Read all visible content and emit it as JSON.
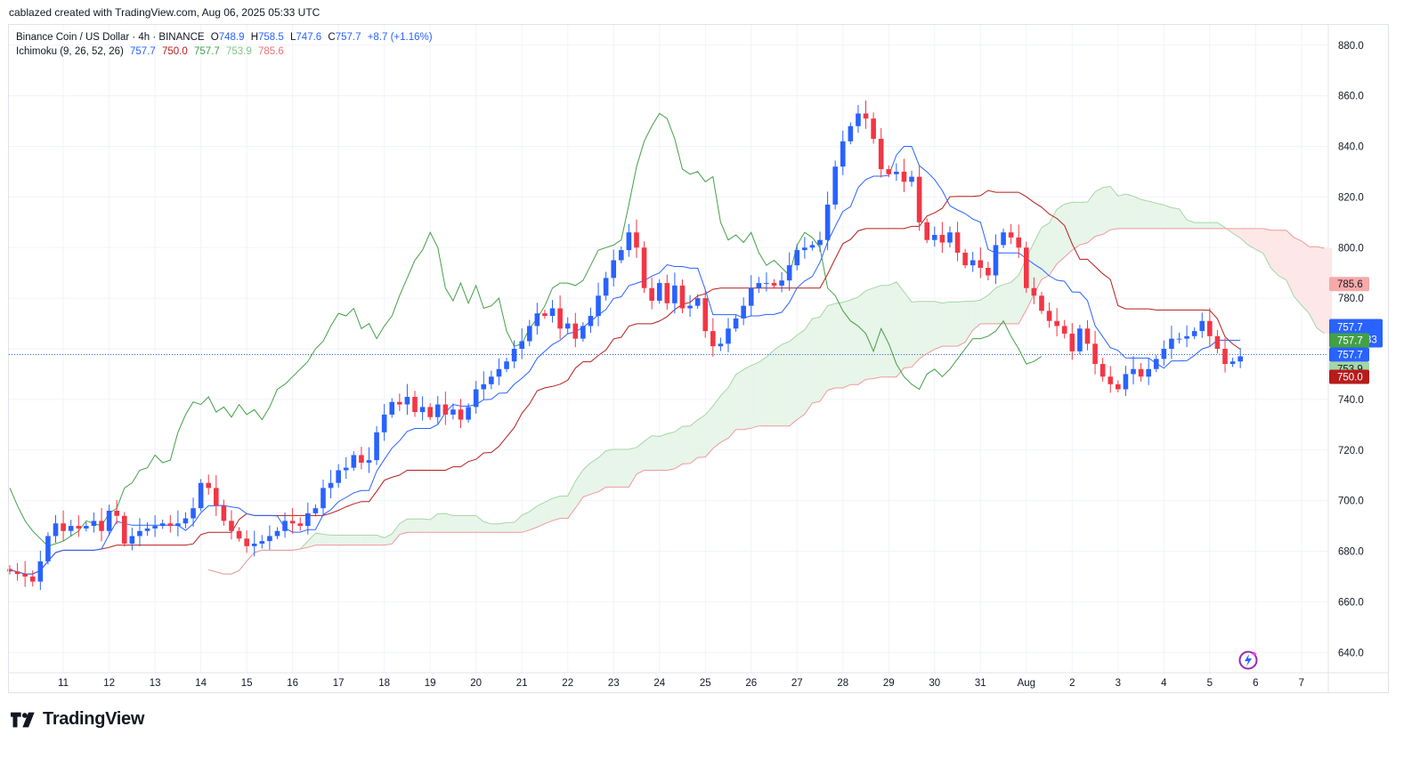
{
  "header": {
    "credit": "cablazed created with TradingView.com, Aug 06, 2025 05:33 UTC"
  },
  "legend": {
    "symbol_title": "Binance Coin / US Dollar · 4h · BINANCE",
    "o_label": "O",
    "o_value": "748.9",
    "h_label": "H",
    "h_value": "758.5",
    "l_label": "L",
    "l_value": "747.6",
    "c_label": "C",
    "c_value": "757.7",
    "change": "+8.7 (+1.16%)",
    "ichimoku_title": "Ichimoku (9, 26, 52, 26)",
    "ichimoku_values": [
      "757.7",
      "750.0",
      "757.7",
      "753.9",
      "785.6"
    ]
  },
  "footer": {
    "brand": "TradingView"
  },
  "colors": {
    "up": "#2962ff",
    "down": "#f23645",
    "conversion": "#2962ff",
    "base": "#b71c1c",
    "lagging": "#43a047",
    "lead_a": "#a5d6a7",
    "lead_b": "#ef9a9a",
    "cloud_bull": "#e8f5e9",
    "cloud_bear": "#fde7e7"
  },
  "chart_data": {
    "type": "candlestick",
    "timeframe": "4h",
    "y_range": [
      632,
      888
    ],
    "y_ticks": [
      640,
      660,
      680,
      700,
      720,
      740,
      760,
      780,
      800,
      820,
      840,
      860,
      880
    ],
    "y_tick_labels": [
      "640.0",
      "660.0",
      "680.0",
      "700.0",
      "720.0",
      "740.0",
      "760.0",
      "780.0",
      "800.0",
      "820.0",
      "840.0",
      "860.0",
      "880.0"
    ],
    "x_ticks": [
      {
        "label": "11",
        "i": 7
      },
      {
        "label": "12",
        "i": 13
      },
      {
        "label": "13",
        "i": 19
      },
      {
        "label": "14",
        "i": 25
      },
      {
        "label": "15",
        "i": 31
      },
      {
        "label": "16",
        "i": 37
      },
      {
        "label": "17",
        "i": 43
      },
      {
        "label": "18",
        "i": 49
      },
      {
        "label": "19",
        "i": 55
      },
      {
        "label": "20",
        "i": 61
      },
      {
        "label": "21",
        "i": 67
      },
      {
        "label": "22",
        "i": 73
      },
      {
        "label": "23",
        "i": 79
      },
      {
        "label": "24",
        "i": 85
      },
      {
        "label": "25",
        "i": 91
      },
      {
        "label": "26",
        "i": 97
      },
      {
        "label": "27",
        "i": 103
      },
      {
        "label": "28",
        "i": 109
      },
      {
        "label": "29",
        "i": 115
      },
      {
        "label": "30",
        "i": 121
      },
      {
        "label": "31",
        "i": 127
      },
      {
        "label": "Aug",
        "i": 133
      },
      {
        "label": "2",
        "i": 139
      },
      {
        "label": "3",
        "i": 145
      },
      {
        "label": "4",
        "i": 151
      },
      {
        "label": "5",
        "i": 157
      },
      {
        "label": "6",
        "i": 163
      },
      {
        "label": "7",
        "i": 169
      }
    ],
    "closes": [
      672,
      671,
      670,
      668,
      676,
      686,
      691,
      688,
      690,
      689,
      690,
      692,
      688,
      696,
      694,
      683,
      686,
      688,
      689,
      690,
      691,
      690,
      691,
      693,
      697,
      707,
      705,
      698,
      692,
      688,
      685,
      682,
      683,
      684,
      686,
      688,
      692,
      691,
      690,
      695,
      697,
      705,
      707,
      712,
      713,
      718,
      715,
      716,
      727,
      734,
      739,
      738,
      741,
      735,
      737,
      733,
      738,
      734,
      736,
      732,
      737,
      744,
      746,
      749,
      752,
      755,
      760,
      763,
      769,
      774,
      773,
      776,
      768,
      770,
      764,
      769,
      773,
      781,
      788,
      795,
      799,
      806,
      800,
      784,
      779,
      786,
      778,
      785,
      776,
      777,
      780,
      767,
      761,
      762,
      768,
      772,
      777,
      784,
      786,
      786,
      785,
      787,
      793,
      799,
      800,
      801,
      803,
      817,
      832,
      842,
      848,
      853,
      851,
      843,
      831,
      829,
      830,
      826,
      828,
      810,
      803,
      805,
      802,
      806,
      798,
      793,
      795,
      792,
      789,
      801,
      806,
      804,
      800,
      784,
      781,
      775,
      771,
      769,
      766,
      759,
      768,
      762,
      754,
      749,
      746,
      744,
      750,
      752,
      749,
      752,
      756,
      760,
      764,
      764,
      765,
      767,
      771,
      765,
      760,
      754,
      755,
      757
    ],
    "current_price": "757.7",
    "countdown": "02:26:33",
    "ichimoku": {
      "conversion_last": 757.7,
      "base_last": 750.0,
      "lagging_last": 757.7,
      "lead_a_last": 753.9,
      "lead_b_last": 785.6
    },
    "price_labels": [
      "785.6",
      "757.7",
      "02:26:33",
      "757.7",
      "757.7",
      "753.9",
      "750.0"
    ]
  }
}
